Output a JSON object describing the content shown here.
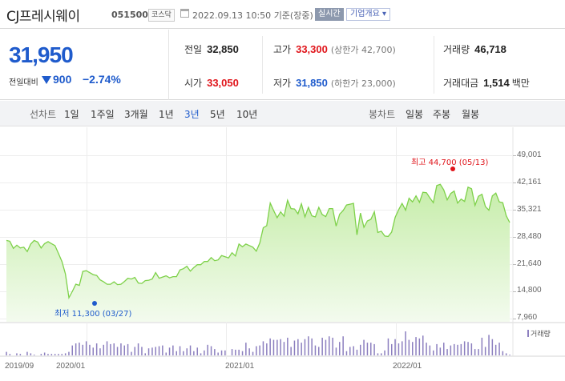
{
  "header": {
    "stock_name": "CJ프레시웨이",
    "stock_code": "051500",
    "market": "코스닥",
    "datetime": "2022.09.13 10:50",
    "basis": "기준(장중)",
    "realtime_label": "실시간",
    "company_info_label": "기업개요 ▾"
  },
  "summary": {
    "price": "31,950",
    "change_label": "전일대비",
    "change_value": "900",
    "change_pct": "−2.74%",
    "prev_close": {
      "label": "전일",
      "value": "32,850"
    },
    "open": {
      "label": "시가",
      "value": "33,050"
    },
    "high": {
      "label": "고가",
      "value": "33,300",
      "sub": "(상한가 42,700)"
    },
    "low": {
      "label": "저가",
      "value": "31,850",
      "sub": "(하한가 23,000)"
    },
    "volume": {
      "label": "거래량",
      "value": "46,718"
    },
    "amount": {
      "label": "거래대금",
      "value": "1,514",
      "unit": "백만"
    }
  },
  "tabs": {
    "line_chart_label": "선차트",
    "periods": [
      "1일",
      "1주일",
      "3개월",
      "1년",
      "3년",
      "5년",
      "10년"
    ],
    "active_period": "3년",
    "candle_chart_label": "봉차트",
    "candle_periods": [
      "일봉",
      "주봉",
      "월봉"
    ]
  },
  "colors": {
    "down": "#1f5bcc",
    "up": "#e0151b",
    "line": "#7ed14a",
    "volume": "#8c7fbf"
  },
  "chart_data": {
    "type": "area",
    "y_ticks": [
      "49,001",
      "42,161",
      "35,321",
      "28,480",
      "21,640",
      "14,800",
      "7,960"
    ],
    "ylim": [
      7960,
      49001
    ],
    "x_ticks": [
      "2019/09",
      "2020/01",
      "2021/01",
      "2022/01"
    ],
    "high_annotation": "최고 44,700 (05/13)",
    "low_annotation": "최저 11,300 (03/27)",
    "volume_label": "거래량",
    "price_series": [
      27600,
      27400,
      25600,
      26400,
      25700,
      25900,
      24800,
      26700,
      27600,
      27200,
      25700,
      26800,
      27300,
      26800,
      26300,
      24300,
      22300,
      19200,
      13200,
      14800,
      16600,
      16300,
      19800,
      20000,
      19500,
      19000,
      18800,
      17700,
      17200,
      16600,
      16600,
      17200,
      16500,
      16600,
      17300,
      18100,
      17900,
      18300,
      16900,
      16800,
      17500,
      17600,
      17900,
      19500,
      18100,
      18400,
      18700,
      18200,
      18500,
      18500,
      20200,
      20500,
      21100,
      19900,
      20800,
      21500,
      21500,
      22300,
      22300,
      23300,
      22500,
      22700,
      23800,
      23500,
      23200,
      24500,
      23700,
      26700,
      26000,
      26700,
      26300,
      25900,
      24900,
      27000,
      30800,
      31300,
      37000,
      35100,
      33300,
      34800,
      33700,
      37700,
      35600,
      35500,
      34300,
      36800,
      33500,
      35900,
      33800,
      33500,
      35900,
      34100,
      33600,
      35600,
      35600,
      31200,
      34200,
      35100,
      36500,
      36700,
      36900,
      29000,
      34500,
      30900,
      32500,
      32900,
      34800,
      29600,
      29900,
      28700,
      28600,
      29700,
      33400,
      35300,
      36900,
      35200,
      38200,
      37300,
      38800,
      37200,
      39700,
      39600,
      38300,
      37100,
      41400,
      41700,
      40300,
      37800,
      39400,
      40000,
      37000,
      38000,
      37400,
      41000,
      40600,
      36400,
      38700,
      39200,
      36100,
      35200,
      38800,
      39500,
      37300,
      37100,
      33800,
      32100
    ],
    "volume_series": [
      5,
      2,
      0,
      3,
      2,
      0,
      5,
      3,
      1,
      0,
      2,
      4,
      2,
      2,
      2,
      2,
      2,
      3,
      5,
      14,
      17,
      18,
      15,
      20,
      15,
      11,
      17,
      10,
      15,
      20,
      16,
      17,
      12,
      17,
      14,
      16,
      5,
      12,
      17,
      12,
      3,
      10,
      11,
      12,
      13,
      14,
      4,
      11,
      14,
      6,
      13,
      6,
      10,
      14,
      6,
      11,
      3,
      7,
      15,
      13,
      9,
      4,
      7,
      7,
      0,
      9,
      8,
      8,
      6,
      18,
      10,
      5,
      13,
      14,
      20,
      17,
      24,
      22,
      22,
      23,
      19,
      25,
      12,
      21,
      23,
      18,
      23,
      27,
      24,
      14,
      12,
      25,
      22,
      27,
      25,
      11,
      19,
      27,
      6,
      12,
      13,
      8,
      15,
      22,
      18,
      18,
      16,
      3,
      3,
      7,
      24,
      16,
      23,
      17,
      20,
      34,
      22,
      19,
      26,
      24,
      28,
      18,
      14,
      7,
      16,
      11,
      18,
      9,
      14,
      16,
      15,
      16,
      20,
      19,
      17,
      9,
      9,
      25,
      12,
      29,
      23,
      15,
      18,
      6,
      3,
      1
    ]
  }
}
